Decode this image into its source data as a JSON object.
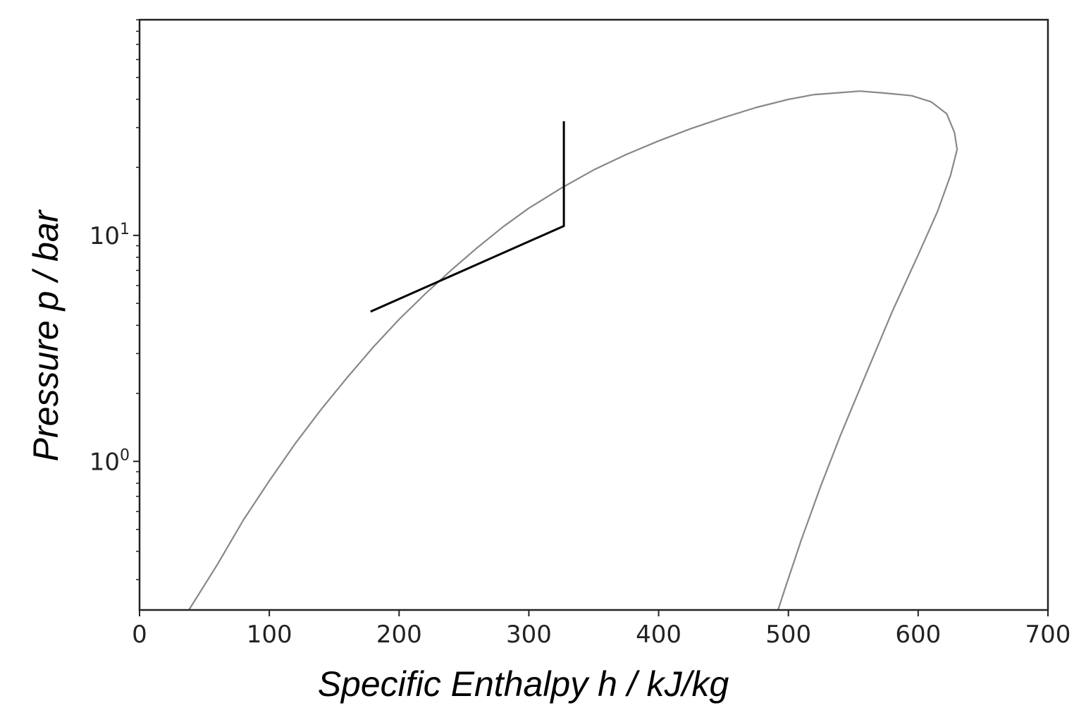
{
  "chart_data": {
    "type": "line",
    "title": "",
    "xlabel": "Specific Enthalpy h / kJ/kg",
    "ylabel": "Pressure p / bar",
    "xlim": [
      0,
      700
    ],
    "ylim": [
      0.22,
      90
    ],
    "yscale": "log",
    "grid": false,
    "x_ticks": [
      0,
      100,
      200,
      300,
      400,
      500,
      600,
      700
    ],
    "y_ticks": [
      {
        "value": 1,
        "base": "10",
        "exp": "0"
      },
      {
        "value": 10,
        "base": "10",
        "exp": "1"
      }
    ],
    "series": [
      {
        "color": "#888888",
        "points": [
          [
            38,
            0.22
          ],
          [
            60,
            0.35
          ],
          [
            80,
            0.55
          ],
          [
            100,
            0.82
          ],
          [
            120,
            1.2
          ],
          [
            140,
            1.7
          ],
          [
            160,
            2.35
          ],
          [
            180,
            3.2
          ],
          [
            200,
            4.25
          ],
          [
            220,
            5.5
          ],
          [
            240,
            7.0
          ],
          [
            260,
            8.8
          ],
          [
            280,
            10.9
          ],
          [
            300,
            13.2
          ],
          [
            325,
            16.2
          ],
          [
            350,
            19.5
          ],
          [
            375,
            22.8
          ],
          [
            400,
            26.2
          ],
          [
            425,
            29.7
          ],
          [
            450,
            33.2
          ],
          [
            475,
            36.8
          ],
          [
            500,
            40.0
          ],
          [
            520,
            42.0
          ],
          [
            540,
            42.8
          ],
          [
            555,
            43.5
          ],
          [
            575,
            42.6
          ],
          [
            595,
            41.5
          ],
          [
            610,
            39.0
          ],
          [
            622,
            34.5
          ],
          [
            628,
            28.5
          ],
          [
            630,
            24.0
          ],
          [
            625,
            18.5
          ],
          [
            615,
            12.8
          ],
          [
            600,
            8.2
          ],
          [
            580,
            4.6
          ],
          [
            560,
            2.45
          ],
          [
            540,
            1.3
          ],
          [
            525,
            0.78
          ],
          [
            510,
            0.45
          ],
          [
            498,
            0.28
          ],
          [
            492,
            0.22
          ]
        ]
      },
      {
        "color": "#000000",
        "points": [
          [
            178,
            4.6
          ],
          [
            327,
            11.0
          ],
          [
            327,
            32.0
          ]
        ]
      }
    ]
  }
}
